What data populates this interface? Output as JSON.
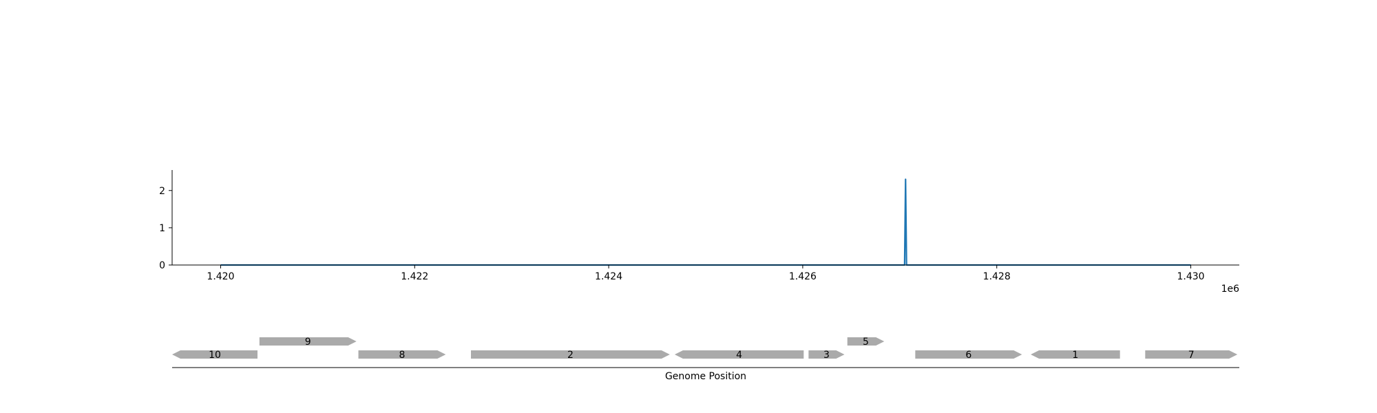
{
  "chart_data": [
    {
      "type": "line",
      "title": "",
      "xlabel": "",
      "ylabel": "",
      "x_offset_label": "1e6",
      "xlim": [
        1419500,
        1430500
      ],
      "ylim": [
        0,
        2.55
      ],
      "x_ticks": [
        1420000,
        1422000,
        1424000,
        1426000,
        1428000,
        1430000
      ],
      "x_tick_labels": [
        "1.420",
        "1.422",
        "1.424",
        "1.426",
        "1.428",
        "1.430"
      ],
      "y_ticks": [
        0,
        1,
        2
      ],
      "y_tick_labels": [
        "0",
        "1",
        "2"
      ],
      "grid": false,
      "series": [
        {
          "color": "#1f77b4",
          "x": [
            1420000,
            1427050,
            1427060,
            1427070,
            1430000
          ],
          "y": [
            0,
            0,
            2.3,
            0,
            0
          ]
        }
      ]
    },
    {
      "type": "gene-track",
      "xlabel": "Genome Position",
      "xlim": [
        1419500,
        1430500
      ],
      "color": "#aaaaaa",
      "genes": [
        {
          "label": "10",
          "start": 1419500,
          "end": 1420380,
          "strand": "-",
          "row": 0
        },
        {
          "label": "9",
          "start": 1420400,
          "end": 1421400,
          "strand": "+",
          "row": 1
        },
        {
          "label": "8",
          "start": 1421420,
          "end": 1422320,
          "strand": "+",
          "row": 0
        },
        {
          "label": "2",
          "start": 1422580,
          "end": 1424630,
          "strand": "+",
          "row": 0
        },
        {
          "label": "4",
          "start": 1424680,
          "end": 1426010,
          "strand": "-",
          "row": 0
        },
        {
          "label": "3",
          "start": 1426060,
          "end": 1426430,
          "strand": "+",
          "row": 0
        },
        {
          "label": "5",
          "start": 1426460,
          "end": 1426840,
          "strand": "+",
          "row": 1
        },
        {
          "label": "6",
          "start": 1427160,
          "end": 1428260,
          "strand": "+",
          "row": 0
        },
        {
          "label": "1",
          "start": 1428350,
          "end": 1429270,
          "strand": "-",
          "row": 0
        },
        {
          "label": "7",
          "start": 1429530,
          "end": 1430480,
          "strand": "+",
          "row": 0
        }
      ]
    }
  ]
}
